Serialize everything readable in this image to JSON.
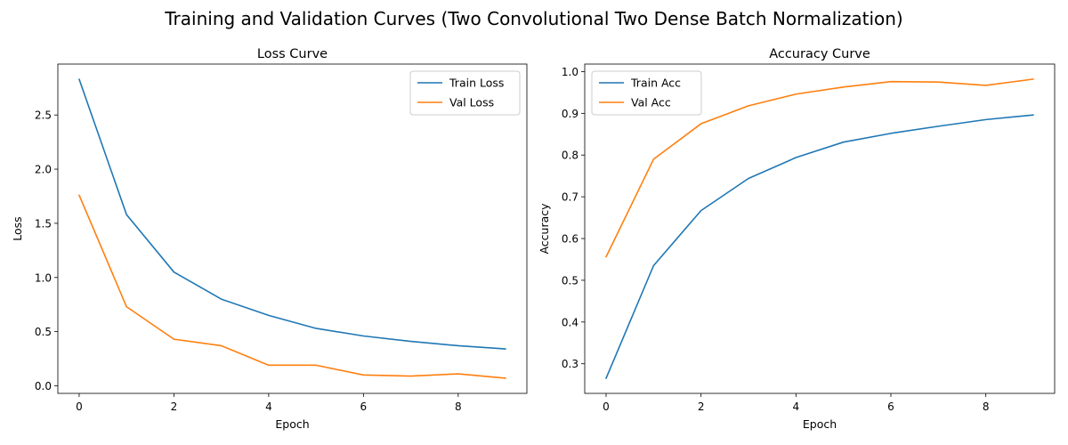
{
  "figure": {
    "title": "Training and Validation Curves (Two Convolutional Two Dense Batch Normalization)"
  },
  "colors": {
    "train": "#1f77b4",
    "val": "#ff7f0e",
    "axis": "#000000"
  },
  "chart_data": [
    {
      "type": "line",
      "title": "Loss Curve",
      "xlabel": "Epoch",
      "ylabel": "Loss",
      "x": [
        0,
        1,
        2,
        3,
        4,
        5,
        6,
        7,
        8,
        9
      ],
      "xlim": [
        -0.45,
        9.45
      ],
      "ylim": [
        -0.07,
        2.97
      ],
      "xticks": [
        0,
        2,
        4,
        6,
        8
      ],
      "yticks": [
        0.0,
        0.5,
        1.0,
        1.5,
        2.0,
        2.5
      ],
      "yticklabels": [
        "0.0",
        "0.5",
        "1.0",
        "1.5",
        "2.0",
        "2.5"
      ],
      "legend_position": "upper right",
      "grid": false,
      "series": [
        {
          "name": "Train Loss",
          "color": "#1f77b4",
          "values": [
            2.83,
            1.58,
            1.05,
            0.8,
            0.65,
            0.53,
            0.46,
            0.41,
            0.37,
            0.34
          ]
        },
        {
          "name": "Val Loss",
          "color": "#ff7f0e",
          "values": [
            1.76,
            0.73,
            0.43,
            0.37,
            0.19,
            0.19,
            0.1,
            0.09,
            0.11,
            0.07
          ]
        }
      ]
    },
    {
      "type": "line",
      "title": "Accuracy Curve",
      "xlabel": "Epoch",
      "ylabel": "Accuracy",
      "x": [
        0,
        1,
        2,
        3,
        4,
        5,
        6,
        7,
        8,
        9
      ],
      "xlim": [
        -0.45,
        9.45
      ],
      "ylim": [
        0.229,
        1.018
      ],
      "xticks": [
        0,
        2,
        4,
        6,
        8
      ],
      "yticks": [
        0.3,
        0.4,
        0.5,
        0.6,
        0.7,
        0.8,
        0.9,
        1.0
      ],
      "yticklabels": [
        "0.3",
        "0.4",
        "0.5",
        "0.6",
        "0.7",
        "0.8",
        "0.9",
        "1.0"
      ],
      "legend_position": "upper left",
      "grid": false,
      "series": [
        {
          "name": "Train Acc",
          "color": "#1f77b4",
          "values": [
            0.265,
            0.535,
            0.667,
            0.744,
            0.794,
            0.831,
            0.852,
            0.869,
            0.885,
            0.896
          ]
        },
        {
          "name": "Val Acc",
          "color": "#ff7f0e",
          "values": [
            0.556,
            0.79,
            0.875,
            0.918,
            0.946,
            0.963,
            0.976,
            0.975,
            0.967,
            0.982
          ]
        }
      ]
    }
  ]
}
